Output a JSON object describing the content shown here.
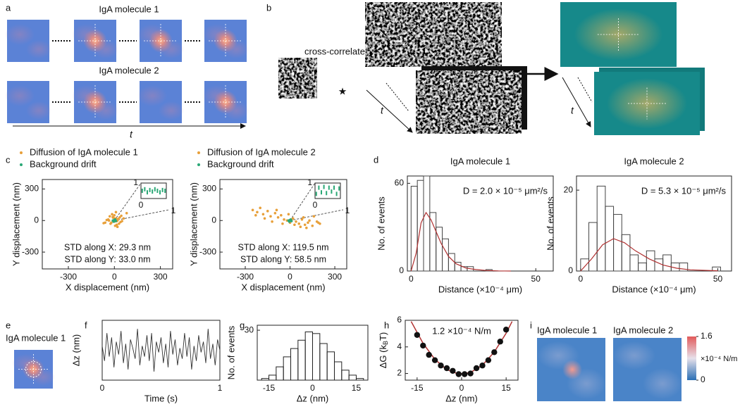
{
  "panel_labels": [
    "a",
    "b",
    "c",
    "d",
    "e",
    "f",
    "g",
    "h",
    "i"
  ],
  "a": {
    "titles": [
      "IgA molecule 1",
      "IgA molecule 2"
    ],
    "axis_label": "t"
  },
  "b": {
    "label": "cross-correlate",
    "operator": "★",
    "axis_labels": [
      "t",
      "t"
    ]
  },
  "e": {
    "title": "IgA molecule 1"
  },
  "i": {
    "titles": [
      "IgA molecule 1",
      "IgA molecule 2"
    ],
    "colorbar": {
      "lim": [
        0,
        1.6
      ],
      "ticks": [
        0,
        1.6
      ],
      "label": "×10⁻⁴ N/m"
    }
  },
  "chart_data": [
    {
      "type": "scatter",
      "xlabel": "X displacement (nm)",
      "ylabel": "Y displacement (nm)",
      "xlim": [
        -470,
        380
      ],
      "ylim": [
        -460,
        390
      ],
      "xticks": [
        -300,
        0,
        300
      ],
      "yticks": [
        -300,
        0,
        300
      ],
      "series": [
        {
          "name": "Diffusion of IgA molecule 1",
          "color": "#e8a03a",
          "x": [
            -40,
            -20,
            -10,
            0,
            10,
            20,
            30,
            -30,
            15,
            -5,
            25,
            40,
            -50,
            5,
            -15,
            35,
            50,
            -25,
            10,
            0,
            60,
            -60,
            20,
            -35,
            45,
            80,
            -70,
            5,
            15,
            -10
          ],
          "values": [
            10,
            -20,
            30,
            -10,
            20,
            0,
            -30,
            40,
            -40,
            25,
            15,
            -15,
            5,
            -50,
            60,
            30,
            -5,
            -30,
            80,
            50,
            20,
            -20,
            -60,
            0,
            45,
            70,
            -25,
            10,
            -5,
            35
          ]
        },
        {
          "name": "Background drift",
          "color": "#2aa876",
          "x": [
            -10,
            0,
            10,
            5,
            -5
          ],
          "values": [
            0,
            5,
            -5,
            10,
            -10
          ]
        }
      ],
      "annotations": [
        "STD along X: 29.3 nm",
        "STD along Y: 33.0 nm"
      ],
      "inset": {
        "color": "#2aa876",
        "xlim": [
          0,
          1
        ],
        "ylim": [
          0,
          1
        ],
        "xticks": [
          0,
          1
        ],
        "yticks": [
          1
        ],
        "x": [
          0.05,
          0.15,
          0.25,
          0.35,
          0.45,
          0.55,
          0.65,
          0.75,
          0.85,
          0.95
        ],
        "values": [
          0.5,
          0.6,
          0.4,
          0.55,
          0.45,
          0.6,
          0.5,
          0.4,
          0.55,
          0.5
        ]
      }
    },
    {
      "type": "scatter",
      "xlabel": "X displacement (nm)",
      "ylabel": "Y displacement (nm)",
      "xlim": [
        -470,
        380
      ],
      "ylim": [
        -460,
        390
      ],
      "xticks": [
        -300,
        0,
        300
      ],
      "yticks": [
        -300,
        0,
        300
      ],
      "series": [
        {
          "name": "Diffusion of IgA molecule 2",
          "color": "#e8a03a",
          "x": [
            -250,
            -220,
            -200,
            -180,
            -150,
            -130,
            -100,
            -80,
            -60,
            -40,
            -20,
            0,
            20,
            40,
            60,
            80,
            100,
            120,
            150,
            180,
            200,
            -170,
            -90,
            -10,
            70,
            130,
            160,
            -230,
            -120,
            30,
            110,
            190,
            -50,
            90,
            10
          ],
          "values": [
            100,
            80,
            120,
            60,
            90,
            40,
            70,
            30,
            50,
            10,
            0,
            -20,
            20,
            -10,
            -30,
            10,
            -40,
            -20,
            -50,
            -10,
            -30,
            20,
            100,
            60,
            -60,
            0,
            40,
            50,
            -10,
            -40,
            -70,
            -20,
            -30,
            30,
            10
          ]
        },
        {
          "name": "Background drift",
          "color": "#2aa876",
          "x": [
            -10,
            0,
            10,
            5,
            -5
          ],
          "values": [
            0,
            5,
            -5,
            10,
            -10
          ]
        }
      ],
      "annotations": [
        "STD along X: 119.5 nm",
        "STD along Y: 58.5 nm"
      ],
      "inset": {
        "color": "#2aa876",
        "xlim": [
          0,
          1
        ],
        "ylim": [
          0,
          1
        ],
        "xticks": [
          0,
          1
        ],
        "yticks": [
          1
        ],
        "x": [
          0.05,
          0.15,
          0.25,
          0.35,
          0.45,
          0.55,
          0.65,
          0.75,
          0.85,
          0.95
        ],
        "values": [
          0.3,
          0.7,
          0.4,
          0.75,
          0.35,
          0.7,
          0.45,
          0.7,
          0.3,
          0.65
        ]
      }
    },
    {
      "type": "histogram",
      "title": "IgA molecule 1",
      "annotation": "D = 2.0 × 10⁻⁵ μm²/s",
      "xlabel": "Distance (×10⁻⁴ μm)",
      "ylabel": "No. of events",
      "xlim": [
        -1.5,
        57
      ],
      "ylim": [
        0,
        65
      ],
      "xticks": [
        0,
        50
      ],
      "yticks": [
        0,
        60
      ],
      "color": "#444",
      "bins": [
        0,
        2.5,
        5,
        7.5,
        10,
        12.5,
        15,
        17.5,
        20,
        22.5,
        25,
        27.5,
        30,
        32.5,
        35
      ],
      "values": [
        58,
        62,
        65,
        40,
        30,
        22,
        12,
        6,
        3,
        3,
        0,
        0,
        1,
        0
      ],
      "fit": {
        "color": "#b03030",
        "x": [
          0,
          2,
          4,
          6,
          8,
          10,
          12,
          15,
          18,
          22,
          26,
          30,
          35,
          40
        ],
        "y": [
          0,
          12,
          33,
          40,
          35,
          27,
          19,
          10,
          5,
          2,
          1,
          0.4,
          0.1,
          0
        ]
      }
    },
    {
      "type": "histogram",
      "title": "IgA molecule 2",
      "annotation": "D = 5.3 × 10⁻⁵ μm²/s",
      "xlabel": "Distance (×10⁻⁴ μm)",
      "ylabel": "No. of events",
      "xlim": [
        -1.5,
        55
      ],
      "ylim": [
        0,
        23.5
      ],
      "xticks": [
        0,
        50
      ],
      "yticks": [
        0,
        20
      ],
      "color": "#444",
      "bins": [
        0,
        3,
        6,
        9,
        12,
        15,
        18,
        21,
        24,
        27,
        30,
        33,
        36,
        39,
        42,
        45,
        48,
        51
      ],
      "values": [
        3,
        12,
        21,
        16,
        14,
        9,
        4,
        2,
        5,
        3,
        4,
        2,
        2,
        0,
        0,
        0,
        1
      ],
      "fit": {
        "color": "#b03030",
        "x": [
          0,
          4,
          8,
          12,
          16,
          20,
          25,
          30,
          35,
          40,
          50
        ],
        "y": [
          0,
          3,
          6.5,
          8,
          7,
          5,
          3,
          1.5,
          0.7,
          0.3,
          0.05
        ]
      }
    },
    {
      "type": "line",
      "xlabel": "Time (s)",
      "ylabel": "Δz (nm)",
      "xlim": [
        0,
        1
      ],
      "ylim": [
        -14,
        14
      ],
      "xticks": [
        0,
        1
      ],
      "color": "#333",
      "x": [
        0,
        0.02,
        0.04,
        0.06,
        0.08,
        0.1,
        0.12,
        0.14,
        0.16,
        0.18,
        0.2,
        0.22,
        0.24,
        0.26,
        0.28,
        0.3,
        0.32,
        0.34,
        0.36,
        0.38,
        0.4,
        0.42,
        0.44,
        0.46,
        0.48,
        0.5,
        0.52,
        0.54,
        0.56,
        0.58,
        0.6,
        0.62,
        0.64,
        0.66,
        0.68,
        0.7,
        0.72,
        0.74,
        0.76,
        0.78,
        0.8,
        0.82,
        0.84,
        0.86,
        0.88,
        0.9,
        0.92,
        0.94,
        0.96,
        0.98,
        1
      ],
      "values": [
        2,
        -5,
        8,
        -3,
        6,
        -8,
        4,
        -2,
        9,
        -6,
        3,
        -9,
        5,
        1,
        -4,
        10,
        -7,
        2,
        -3,
        7,
        -5,
        8,
        -10,
        4,
        -1,
        6,
        -6,
        3,
        -8,
        9,
        -2,
        5,
        -7,
        1,
        -4,
        8,
        -3,
        6,
        -9,
        2,
        -5,
        7,
        -1,
        4,
        -6,
        10,
        -4,
        3,
        -7,
        5,
        0
      ]
    },
    {
      "type": "histogram",
      "xlabel": "Δz (nm)",
      "ylabel": "No. of events",
      "xlim": [
        -19,
        19
      ],
      "ylim": [
        0,
        33
      ],
      "xticks": [
        -15,
        0,
        15
      ],
      "yticks": [
        30
      ],
      "color": "#222",
      "bins": [
        -17.5,
        -15,
        -12.5,
        -10,
        -7.5,
        -5,
        -2.5,
        0,
        2.5,
        5,
        7.5,
        10,
        12.5,
        15,
        17.5
      ],
      "values": [
        1,
        3,
        8,
        14,
        19,
        24,
        29,
        28,
        22,
        17,
        11,
        6,
        3,
        1
      ]
    },
    {
      "type": "scatter_fit",
      "annotation": "1.2 ×10⁻⁴ N/m",
      "xlabel": "Δz (nm)",
      "ylabel_parts": [
        "ΔG (k",
        "B",
        "T)"
      ],
      "xlim": [
        -19,
        19
      ],
      "ylim": [
        1.5,
        6
      ],
      "xticks": [
        -15,
        0,
        15
      ],
      "yticks": [
        2,
        4,
        6
      ],
      "color": "#111",
      "x": [
        -15,
        -13,
        -11,
        -9,
        -7,
        -5,
        -3,
        -1,
        1,
        3,
        5,
        7,
        9,
        11,
        13,
        15
      ],
      "values": [
        4.9,
        4.1,
        3.4,
        3.0,
        2.6,
        2.4,
        2.2,
        1.95,
        1.95,
        2.0,
        2.4,
        2.6,
        3.0,
        3.6,
        4.4,
        5.3
      ],
      "fit": {
        "color": "#b03030",
        "x": [
          -17,
          -13,
          -9,
          -5,
          -1,
          3,
          7,
          11,
          15,
          17
        ],
        "y": [
          5.91,
          4.27,
          3.06,
          2.29,
          1.96,
          2.07,
          2.62,
          3.61,
          5.03,
          5.91
        ]
      }
    }
  ]
}
